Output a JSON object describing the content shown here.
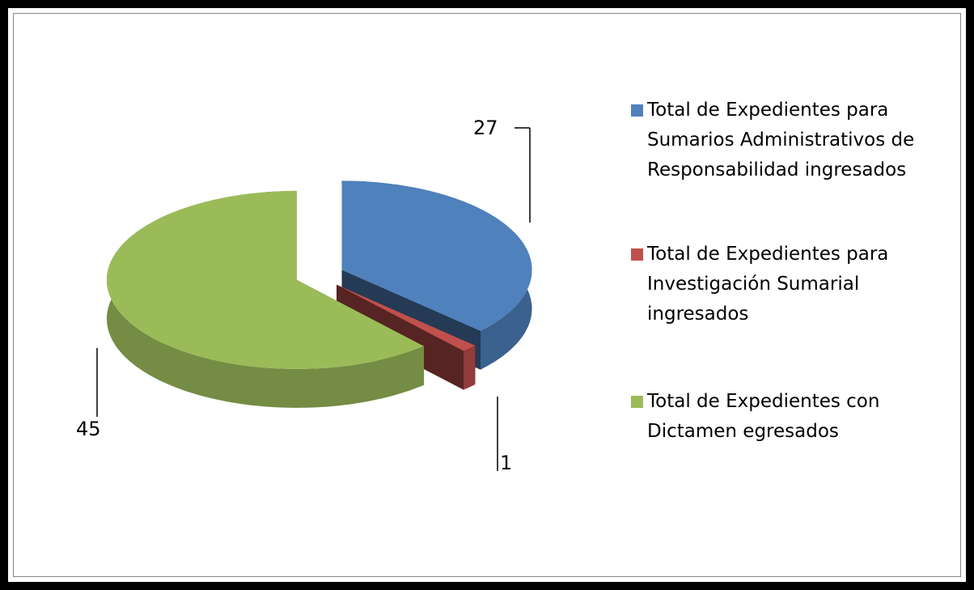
{
  "chart_data": {
    "type": "pie",
    "series": [
      {
        "name": "Total de Expedientes para Sumarios Administrativos de Responsabilidad ingresados",
        "color": "#4f81bd"
      },
      {
        "name": "Total de Expedientes para Investigación Sumarial ingresados",
        "color": "#c0504d"
      },
      {
        "name": "Total de Expedientes con Dictamen egresados",
        "color": "#9bbb59"
      }
    ],
    "values": [
      27,
      1,
      45
    ]
  }
}
